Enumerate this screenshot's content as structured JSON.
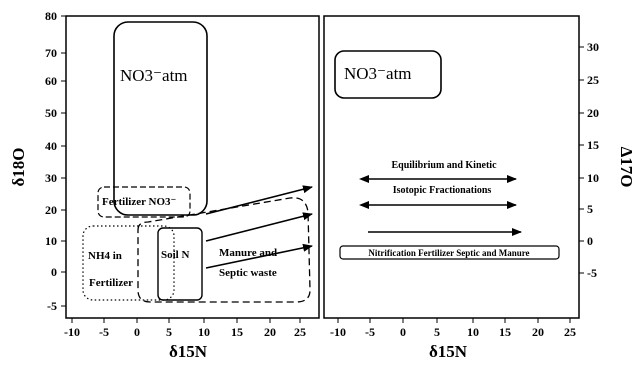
{
  "left_panel": {
    "y_axis_title": "δ18O",
    "x_axis_title": "δ15N",
    "y_ticks": [
      "80",
      "70",
      "60",
      "50",
      "40",
      "30",
      "20",
      "10",
      "0",
      "-5"
    ],
    "x_ticks": [
      "-10",
      "-5",
      "0",
      "5",
      "10",
      "15",
      "20",
      "25"
    ],
    "regions": {
      "atm": "NO3⁻atm",
      "fertilizer_no3": "Fertilizer NO3⁻",
      "nh4_line1": "NH4 in",
      "nh4_line2": "Fertilizer",
      "soil_n": "Soil N",
      "manure_line1": "Manure and",
      "manure_line2": "Septic waste"
    }
  },
  "right_panel": {
    "y_axis_title": "Δ17O",
    "x_axis_title": "δ15N",
    "y_ticks": [
      "30",
      "25",
      "20",
      "15",
      "10",
      "5",
      "0",
      "-5"
    ],
    "x_ticks": [
      "-10",
      "-5",
      "0",
      "5",
      "10",
      "15",
      "20",
      "25"
    ],
    "atm_label": "NO3⁻atm",
    "equilibrium_line1": "Equilibrium and Kinetic",
    "equilibrium_line2": "Isotopic Fractionations",
    "nitrification_label": "Nitrification Fertilizer Septic and Manure"
  }
}
